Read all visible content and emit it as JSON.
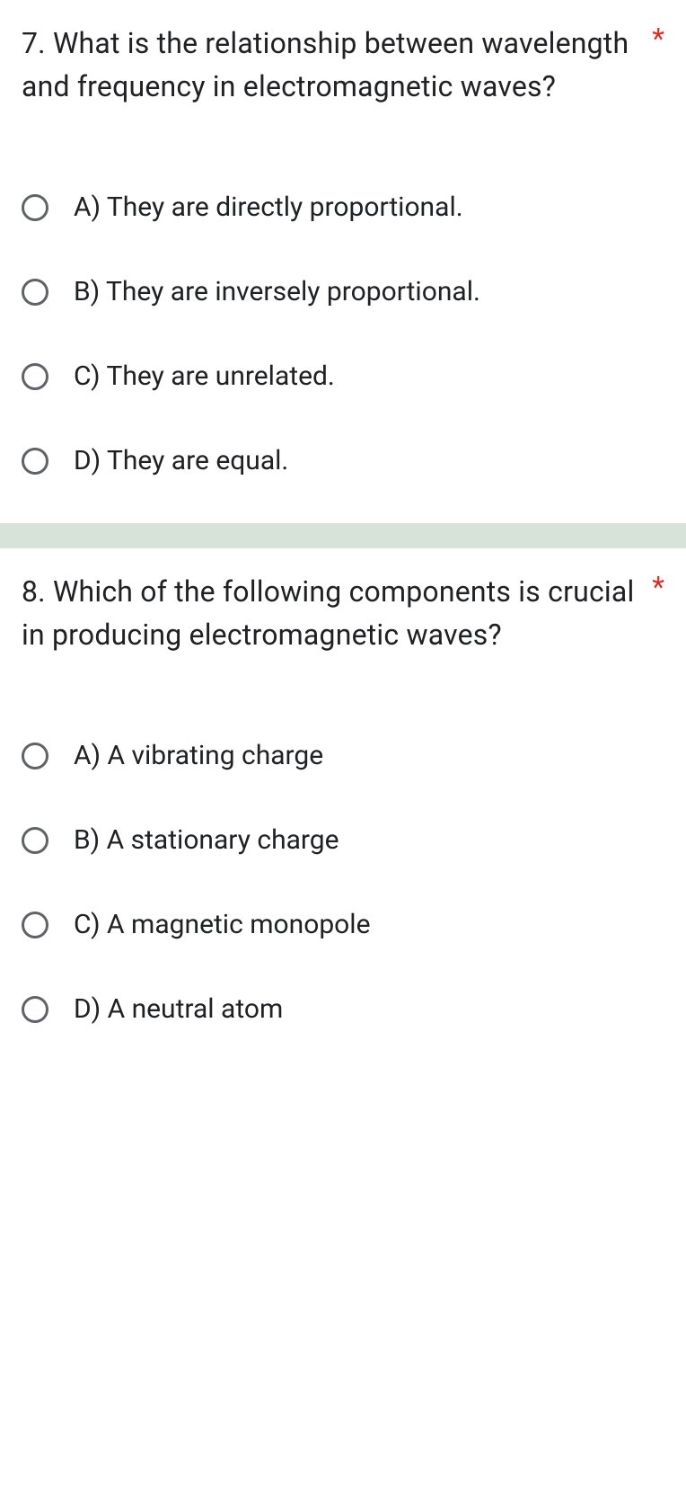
{
  "questions": [
    {
      "title": "7. What is the relationship between wavelength and frequency in electromagnetic waves?",
      "required_marker": "*",
      "options": [
        "A) They are directly proportional.",
        "B) They are inversely proportional.",
        "C) They are unrelated.",
        "D) They are equal."
      ]
    },
    {
      "title": "8. Which of the following components is crucial in producing electromagnetic waves?",
      "required_marker": "*",
      "options": [
        "A) A vibrating charge",
        "B) A stationary charge",
        "C) A magnetic monopole",
        "D) A neutral atom"
      ]
    }
  ],
  "colors": {
    "text": "#202124",
    "required": "#d93025",
    "radio_border": "#5f6368",
    "divider": "#d7e2d9",
    "background": "#ffffff"
  }
}
